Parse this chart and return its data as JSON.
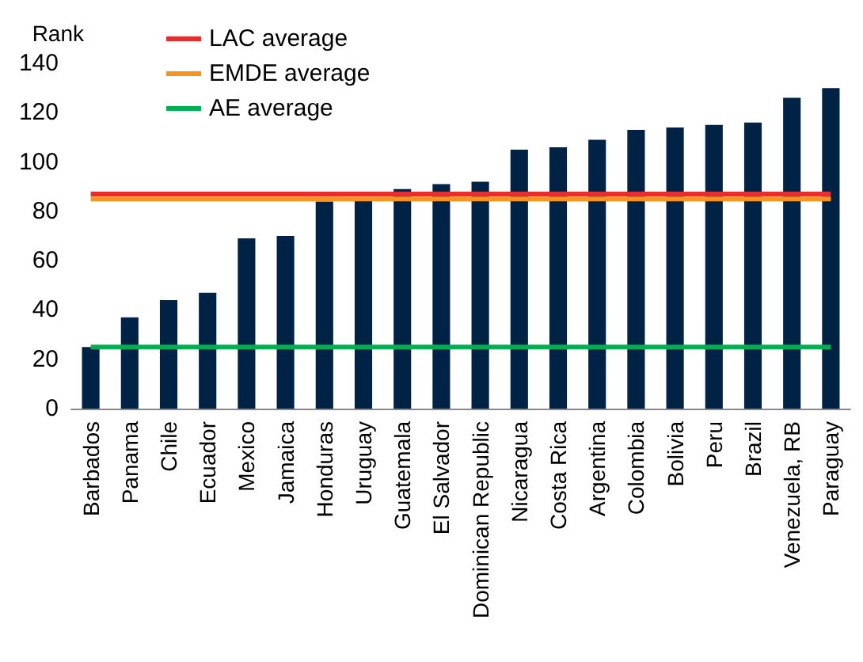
{
  "chart_data": {
    "type": "bar",
    "ylabel": "Rank",
    "categories": [
      "Barbados",
      "Panama",
      "Chile",
      "Ecuador",
      "Mexico",
      "Jamaica",
      "Honduras",
      "Uruguay",
      "Guatemala",
      "El Salvador",
      "Dominican Republic",
      "Nicaragua",
      "Costa Rica",
      "Argentina",
      "Colombia",
      "Bolivia",
      "Peru",
      "Brazil",
      "Venezuela, RB",
      "Paraguay"
    ],
    "series": [
      {
        "color": "#002244",
        "values": [
          25,
          37,
          44,
          47,
          69,
          70,
          84,
          85,
          89,
          91,
          92,
          105,
          106,
          109,
          113,
          114,
          115,
          116,
          126,
          130
        ]
      },
      {
        "type": "line",
        "name": "LAC average",
        "color": "#ee2a2e",
        "values": [
          87,
          87,
          87,
          87,
          87,
          87,
          87,
          87,
          87,
          87,
          87,
          87,
          87,
          87,
          87,
          87,
          87,
          87,
          87,
          87
        ]
      },
      {
        "type": "line",
        "name": "EMDE average",
        "color": "#f7941d",
        "values": [
          85,
          85,
          85,
          85,
          85,
          85,
          85,
          85,
          85,
          85,
          85,
          85,
          85,
          85,
          85,
          85,
          85,
          85,
          85,
          85
        ]
      },
      {
        "type": "line",
        "name": "AE average",
        "color": "#00b050",
        "values": [
          25,
          25,
          25,
          25,
          25,
          25,
          25,
          25,
          25,
          25,
          25,
          25,
          25,
          25,
          25,
          25,
          25,
          25,
          25,
          25
        ]
      }
    ],
    "ylim": [
      0,
      140
    ],
    "yticks": [
      0,
      20,
      40,
      60,
      80,
      100,
      120,
      140
    ],
    "grid": false,
    "legend": "top left",
    "marker": "none"
  }
}
